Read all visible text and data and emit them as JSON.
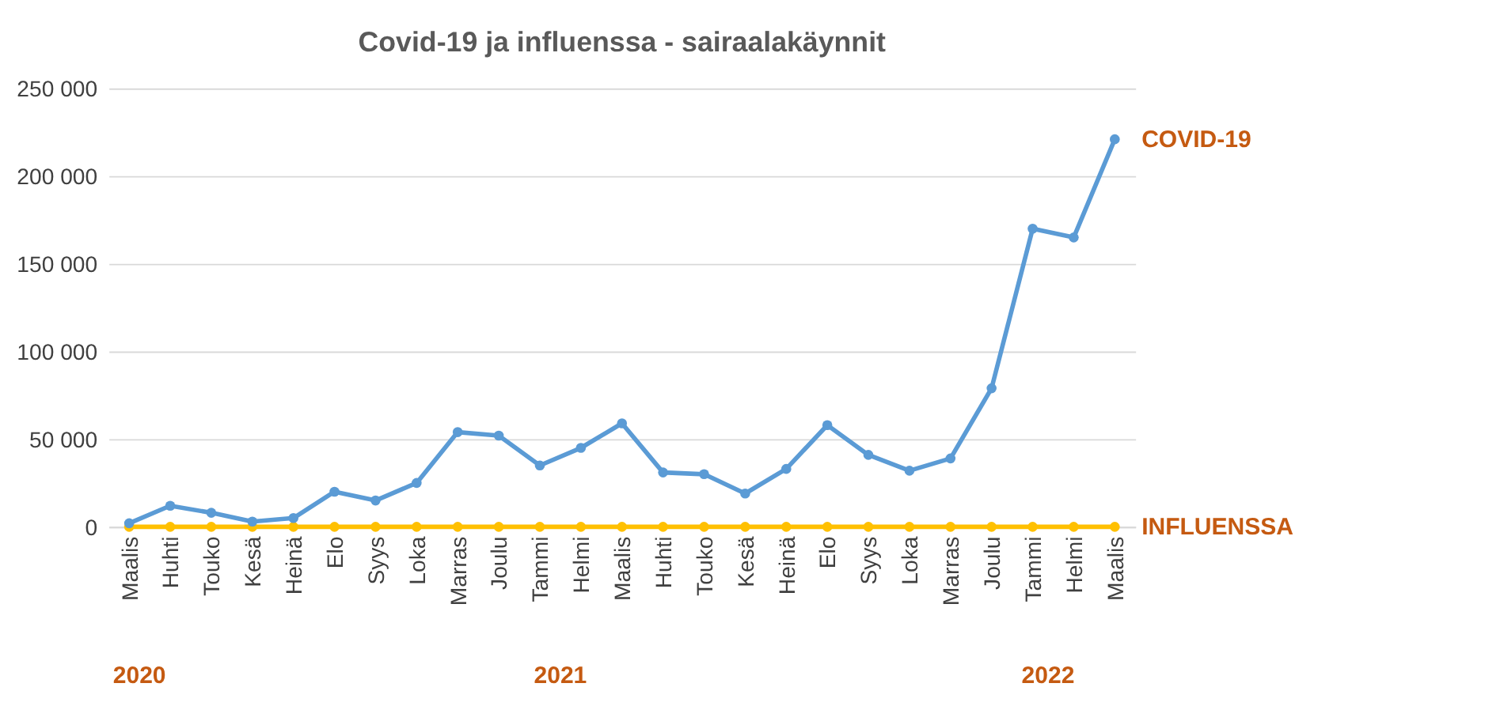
{
  "chart_data": {
    "type": "line",
    "title": "Covid-19 ja influenssa  -  sairaalakäynnit",
    "categories": [
      "Maalis",
      "Huhti",
      "Touko",
      "Kesä",
      "Heinä",
      "Elo",
      "Syys",
      "Loka",
      "Marras",
      "Joulu",
      "Tammi",
      "Helmi",
      "Maalis",
      "Huhti",
      "Touko",
      "Kesä",
      "Heinä",
      "Elo",
      "Syys",
      "Loka",
      "Marras",
      "Joulu",
      "Tammi",
      "Helmi",
      "Maalis"
    ],
    "series": [
      {
        "name": "COVID-19",
        "color": "#5b9bd5",
        "values": [
          2000,
          12000,
          8000,
          3000,
          5000,
          20000,
          15000,
          25000,
          54000,
          52000,
          35000,
          45000,
          59000,
          31000,
          30000,
          19000,
          33000,
          58000,
          41000,
          32000,
          39000,
          79000,
          170000,
          165000,
          221000
        ]
      },
      {
        "name": "INFLUENSSA",
        "color": "#ffc000",
        "values": [
          0,
          0,
          0,
          0,
          0,
          0,
          0,
          0,
          0,
          0,
          0,
          0,
          0,
          0,
          0,
          0,
          0,
          0,
          0,
          0,
          0,
          0,
          0,
          0,
          0
        ]
      }
    ],
    "ylim": [
      0,
      250000
    ],
    "yticks": [
      {
        "value": 0,
        "label": "0"
      },
      {
        "value": 50000,
        "label": "50 000"
      },
      {
        "value": 100000,
        "label": "100 000"
      },
      {
        "value": 150000,
        "label": "150 000"
      },
      {
        "value": 200000,
        "label": "200 000"
      },
      {
        "value": 250000,
        "label": "250 000"
      }
    ],
    "grid": "y",
    "marker": "circle",
    "line_style": "solid",
    "annotations": [
      "2020",
      "2021",
      "2022"
    ]
  }
}
